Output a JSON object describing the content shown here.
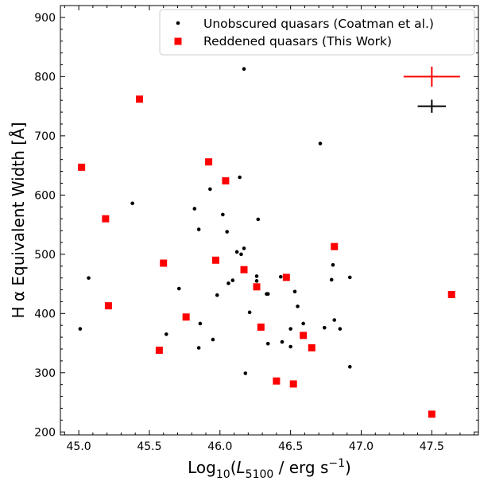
{
  "chart_data": {
    "type": "scatter",
    "xlabel": "Log₁₀(L₅₁₀₀ / erg s⁻¹)",
    "ylabel": "H α  Equivalent Width [Å]",
    "xlim": [
      44.87,
      47.83
    ],
    "ylim": [
      195,
      920
    ],
    "x_ticks": [
      "45.0",
      "45.5",
      "46.0",
      "46.5",
      "47.0",
      "47.5"
    ],
    "y_ticks": [
      "200",
      "300",
      "400",
      "500",
      "600",
      "700",
      "800",
      "900"
    ],
    "legend_position": "top-right",
    "series": [
      {
        "name": "Unobscured quasars (Coatman et al.)",
        "marker": "dot",
        "color": "#000000",
        "points": [
          [
            45.01,
            374
          ],
          [
            45.07,
            460
          ],
          [
            45.38,
            586
          ],
          [
            45.62,
            365
          ],
          [
            45.71,
            442
          ],
          [
            45.82,
            577
          ],
          [
            45.85,
            342
          ],
          [
            45.85,
            542
          ],
          [
            45.86,
            383
          ],
          [
            45.93,
            610
          ],
          [
            45.95,
            356
          ],
          [
            45.98,
            431
          ],
          [
            46.02,
            567
          ],
          [
            46.05,
            538
          ],
          [
            46.06,
            451
          ],
          [
            46.09,
            456
          ],
          [
            46.12,
            504
          ],
          [
            46.14,
            630
          ],
          [
            46.15,
            500
          ],
          [
            46.17,
            813
          ],
          [
            46.17,
            510
          ],
          [
            46.18,
            299
          ],
          [
            46.21,
            402
          ],
          [
            46.26,
            463
          ],
          [
            46.26,
            455
          ],
          [
            46.27,
            559
          ],
          [
            46.33,
            433
          ],
          [
            46.34,
            433
          ],
          [
            46.34,
            349
          ],
          [
            46.43,
            462
          ],
          [
            46.44,
            352
          ],
          [
            46.5,
            344
          ],
          [
            46.5,
            374
          ],
          [
            46.53,
            437
          ],
          [
            46.55,
            412
          ],
          [
            46.59,
            383
          ],
          [
            46.71,
            687
          ],
          [
            46.74,
            376
          ],
          [
            46.79,
            457
          ],
          [
            46.8,
            482
          ],
          [
            46.81,
            389
          ],
          [
            46.85,
            374
          ],
          [
            46.92,
            461
          ],
          [
            46.92,
            310
          ]
        ]
      },
      {
        "name": "Reddened quasars (This Work)",
        "marker": "square",
        "color": "#ff0000",
        "points": [
          [
            45.02,
            647
          ],
          [
            45.19,
            560
          ],
          [
            45.21,
            413
          ],
          [
            45.43,
            762
          ],
          [
            45.57,
            338
          ],
          [
            45.6,
            485
          ],
          [
            45.76,
            394
          ],
          [
            45.92,
            656
          ],
          [
            45.97,
            490
          ],
          [
            46.04,
            624
          ],
          [
            46.17,
            474
          ],
          [
            46.26,
            445
          ],
          [
            46.29,
            377
          ],
          [
            46.4,
            286
          ],
          [
            46.47,
            461
          ],
          [
            46.52,
            281
          ],
          [
            46.59,
            363
          ],
          [
            46.65,
            342
          ],
          [
            46.81,
            513
          ],
          [
            47.5,
            230
          ],
          [
            47.64,
            432
          ]
        ]
      }
    ],
    "error_bars": [
      {
        "color": "#ff0000",
        "x": 47.5,
        "y": 800,
        "xerr": 0.2,
        "yerr": 17
      },
      {
        "color": "#000000",
        "x": 47.5,
        "y": 750,
        "xerr": 0.1,
        "yerr": 11
      }
    ]
  }
}
